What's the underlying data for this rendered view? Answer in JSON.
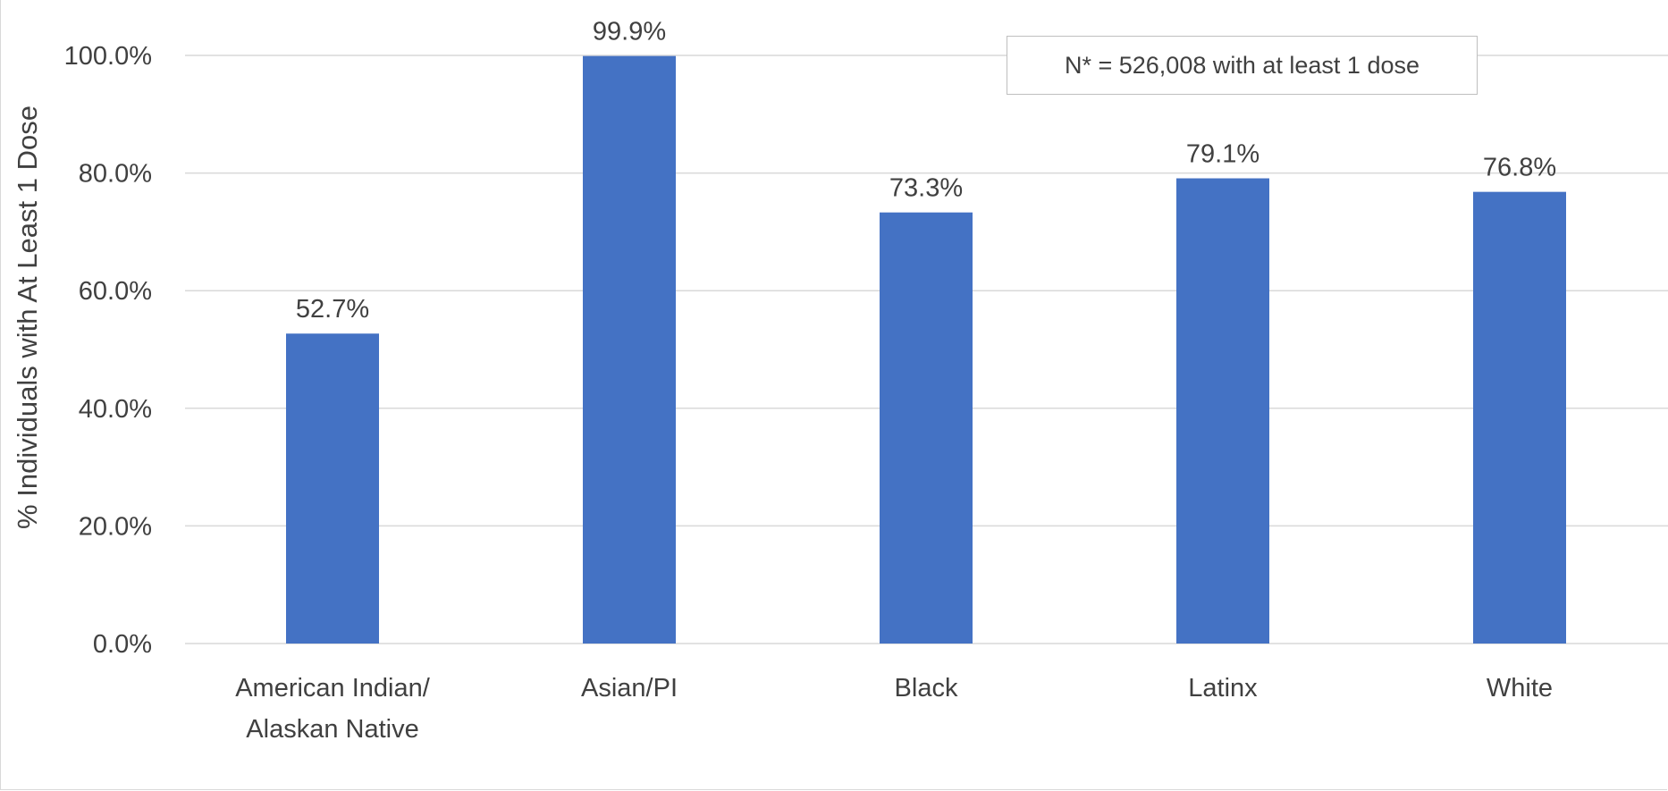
{
  "chart_data": {
    "type": "bar",
    "categories": [
      "American Indian/\nAlaskan Native",
      "Asian/PI",
      "Black",
      "Latinx",
      "White"
    ],
    "values": [
      52.7,
      99.9,
      73.3,
      79.1,
      76.8
    ],
    "data_labels": [
      "52.7%",
      "99.9%",
      "73.3%",
      "79.1%",
      "76.8%"
    ],
    "title": "",
    "xlabel": "",
    "ylabel": "% Individuals with At Least 1 Dose",
    "ylim": [
      0,
      100
    ],
    "yticks": [
      0,
      20,
      40,
      60,
      80,
      100
    ],
    "ytick_labels": [
      "0.0%",
      "20.0%",
      "40.0%",
      "60.0%",
      "80.0%",
      "100.0%"
    ],
    "grid": true,
    "annotation": "N* = 526,008 with at least 1 dose",
    "colors": {
      "bar": "#4472C4",
      "grid": "#d9d9d9",
      "text": "#404040"
    }
  }
}
